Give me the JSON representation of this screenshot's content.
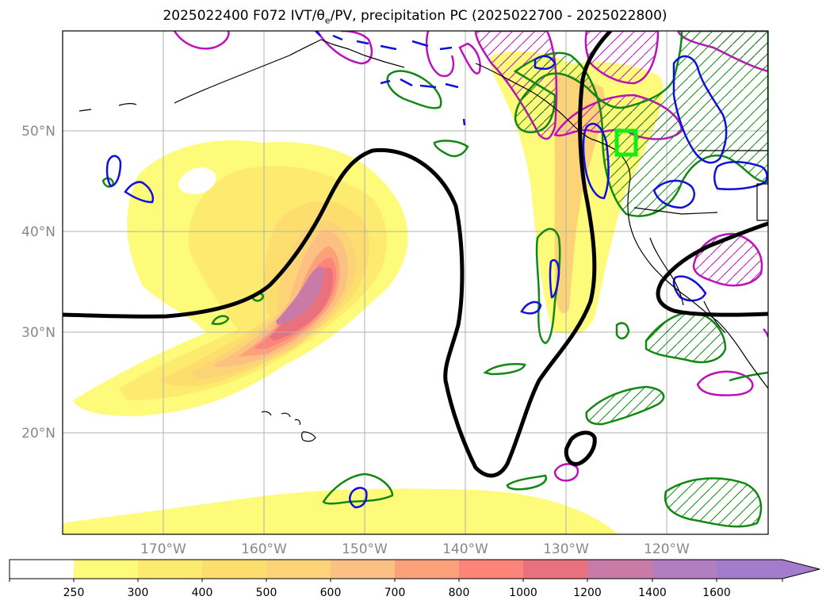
{
  "title": {
    "prefix": "2025022400 F072 IVT/θ",
    "sub": "e",
    "suffix": "/PV, precipitation PC (2025022700 - 2025022800)"
  },
  "axes": {
    "lon_labels": [
      "170°W",
      "160°W",
      "150°W",
      "140°W",
      "130°W",
      "120°W"
    ],
    "lat_labels": [
      "50°N",
      "40°N",
      "30°N",
      "20°N"
    ]
  },
  "colorbar": {
    "ticks": [
      "250",
      "300",
      "400",
      "500",
      "600",
      "700",
      "800",
      "1000",
      "1200",
      "1400",
      "1600"
    ],
    "colors": [
      "#ffffff",
      "#fefa7a",
      "#fdeb70",
      "#fddd6e",
      "#fdd378",
      "#fcc182",
      "#fca17a",
      "#fc8478",
      "#e9717d",
      "#c97aa6",
      "#b27ec2",
      "#a47ccd"
    ]
  },
  "colors": {
    "theta_contour": "#000000",
    "pv_positive": "#1010dd",
    "precip": "#118811",
    "moist": "#bb11bb",
    "target_box": "#11ee11"
  }
}
